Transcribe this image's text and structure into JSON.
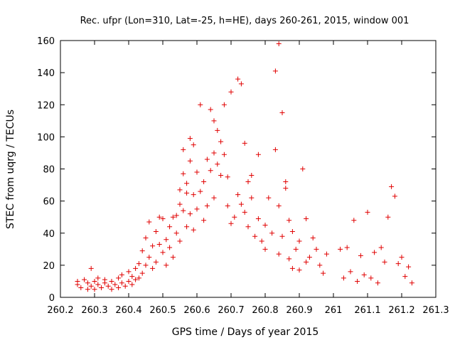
{
  "chart_data": {
    "type": "scatter",
    "title": "Rec. ufpr (Lon=310, Lat=-25, h=HE), days 260-261, 2015, window 001",
    "xlabel": "GPS time / Days of year 2015",
    "ylabel": "STEC from uqrg / TECUs",
    "xlim": [
      260.2,
      261.3
    ],
    "ylim": [
      0,
      160
    ],
    "xticks": [
      260.2,
      260.3,
      260.4,
      260.5,
      260.6,
      260.7,
      260.8,
      260.9,
      261,
      261.1,
      261.2,
      261.3
    ],
    "xtick_labels": [
      "260.2",
      "260.3",
      "260.4",
      "260.5",
      "260.6",
      "260.7",
      "260.8",
      "260.9",
      "261",
      "261.1",
      "261.2",
      "261.3"
    ],
    "yticks": [
      0,
      20,
      40,
      60,
      80,
      100,
      120,
      140,
      160
    ],
    "ytick_labels": [
      "0",
      "20",
      "40",
      "60",
      "80",
      "100",
      "120",
      "140",
      "160"
    ],
    "grid": false,
    "marker": "+",
    "color": "#e00000",
    "points": [
      [
        260.29,
        18
      ],
      [
        260.25,
        10
      ],
      [
        260.25,
        8
      ],
      [
        260.26,
        6
      ],
      [
        260.27,
        11
      ],
      [
        260.28,
        9
      ],
      [
        260.28,
        5
      ],
      [
        260.29,
        7
      ],
      [
        260.3,
        10
      ],
      [
        260.3,
        5
      ],
      [
        260.31,
        12
      ],
      [
        260.31,
        8
      ],
      [
        260.32,
        6
      ],
      [
        260.33,
        9
      ],
      [
        260.33,
        11
      ],
      [
        260.34,
        7
      ],
      [
        260.35,
        10
      ],
      [
        260.35,
        5
      ],
      [
        260.36,
        8
      ],
      [
        260.37,
        12
      ],
      [
        260.37,
        6
      ],
      [
        260.38,
        14
      ],
      [
        260.38,
        9
      ],
      [
        260.39,
        7
      ],
      [
        260.4,
        16
      ],
      [
        260.4,
        10
      ],
      [
        260.41,
        13
      ],
      [
        260.41,
        8
      ],
      [
        260.42,
        18
      ],
      [
        260.42,
        11
      ],
      [
        260.43,
        21
      ],
      [
        260.43,
        12
      ],
      [
        260.44,
        29
      ],
      [
        260.44,
        15
      ],
      [
        260.45,
        20
      ],
      [
        260.45,
        37
      ],
      [
        260.46,
        25
      ],
      [
        260.46,
        47
      ],
      [
        260.47,
        18
      ],
      [
        260.47,
        32
      ],
      [
        260.48,
        22
      ],
      [
        260.48,
        41
      ],
      [
        260.49,
        33
      ],
      [
        260.49,
        50
      ],
      [
        260.5,
        28
      ],
      [
        260.5,
        49
      ],
      [
        260.51,
        20
      ],
      [
        260.51,
        36
      ],
      [
        260.52,
        44
      ],
      [
        260.52,
        31
      ],
      [
        260.53,
        50
      ],
      [
        260.53,
        25
      ],
      [
        260.54,
        40
      ],
      [
        260.54,
        51
      ],
      [
        260.55,
        35
      ],
      [
        260.55,
        58
      ],
      [
        260.55,
        67
      ],
      [
        260.56,
        54
      ],
      [
        260.56,
        77
      ],
      [
        260.56,
        92
      ],
      [
        260.57,
        65
      ],
      [
        260.57,
        44
      ],
      [
        260.57,
        71
      ],
      [
        260.58,
        99
      ],
      [
        260.58,
        52
      ],
      [
        260.58,
        85
      ],
      [
        260.59,
        95
      ],
      [
        260.59,
        64
      ],
      [
        260.59,
        42
      ],
      [
        260.6,
        55
      ],
      [
        260.6,
        78
      ],
      [
        260.61,
        120
      ],
      [
        260.61,
        66
      ],
      [
        260.62,
        72
      ],
      [
        260.62,
        48
      ],
      [
        260.63,
        57
      ],
      [
        260.63,
        86
      ],
      [
        260.64,
        117
      ],
      [
        260.64,
        79
      ],
      [
        260.65,
        110
      ],
      [
        260.65,
        62
      ],
      [
        260.65,
        90
      ],
      [
        260.66,
        104
      ],
      [
        260.66,
        83
      ],
      [
        260.67,
        97
      ],
      [
        260.67,
        76
      ],
      [
        260.68,
        120
      ],
      [
        260.68,
        89
      ],
      [
        260.69,
        75
      ],
      [
        260.69,
        57
      ],
      [
        260.7,
        128
      ],
      [
        260.7,
        46
      ],
      [
        260.71,
        50
      ],
      [
        260.72,
        136
      ],
      [
        260.72,
        64
      ],
      [
        260.73,
        133
      ],
      [
        260.73,
        58
      ],
      [
        260.74,
        96
      ],
      [
        260.74,
        53
      ],
      [
        260.75,
        72
      ],
      [
        260.75,
        44
      ],
      [
        260.76,
        76
      ],
      [
        260.76,
        62
      ],
      [
        260.77,
        38
      ],
      [
        260.78,
        89
      ],
      [
        260.78,
        49
      ],
      [
        260.79,
        35
      ],
      [
        260.8,
        45
      ],
      [
        260.8,
        30
      ],
      [
        260.81,
        62
      ],
      [
        260.82,
        40
      ],
      [
        260.83,
        141
      ],
      [
        260.83,
        92
      ],
      [
        260.84,
        57
      ],
      [
        260.84,
        158
      ],
      [
        260.84,
        27
      ],
      [
        260.85,
        115
      ],
      [
        260.85,
        38
      ],
      [
        260.86,
        72
      ],
      [
        260.86,
        68
      ],
      [
        260.87,
        24
      ],
      [
        260.87,
        48
      ],
      [
        260.88,
        41
      ],
      [
        260.88,
        18
      ],
      [
        260.89,
        30
      ],
      [
        260.9,
        35
      ],
      [
        260.9,
        17
      ],
      [
        260.91,
        80
      ],
      [
        260.92,
        49
      ],
      [
        260.92,
        22
      ],
      [
        260.93,
        25
      ],
      [
        260.94,
        37
      ],
      [
        260.95,
        30
      ],
      [
        260.96,
        20
      ],
      [
        260.97,
        15
      ],
      [
        260.98,
        27
      ],
      [
        261.02,
        30
      ],
      [
        261.03,
        12
      ],
      [
        261.04,
        31
      ],
      [
        261.05,
        16
      ],
      [
        261.06,
        48
      ],
      [
        261.07,
        10
      ],
      [
        261.08,
        26
      ],
      [
        261.09,
        14
      ],
      [
        261.1,
        53
      ],
      [
        261.11,
        12
      ],
      [
        261.12,
        28
      ],
      [
        261.13,
        9
      ],
      [
        261.14,
        31
      ],
      [
        261.15,
        22
      ],
      [
        261.16,
        50
      ],
      [
        261.17,
        69
      ],
      [
        261.18,
        63
      ],
      [
        261.19,
        21
      ],
      [
        261.2,
        25
      ],
      [
        261.21,
        13
      ],
      [
        261.22,
        19
      ],
      [
        261.23,
        9
      ]
    ]
  }
}
